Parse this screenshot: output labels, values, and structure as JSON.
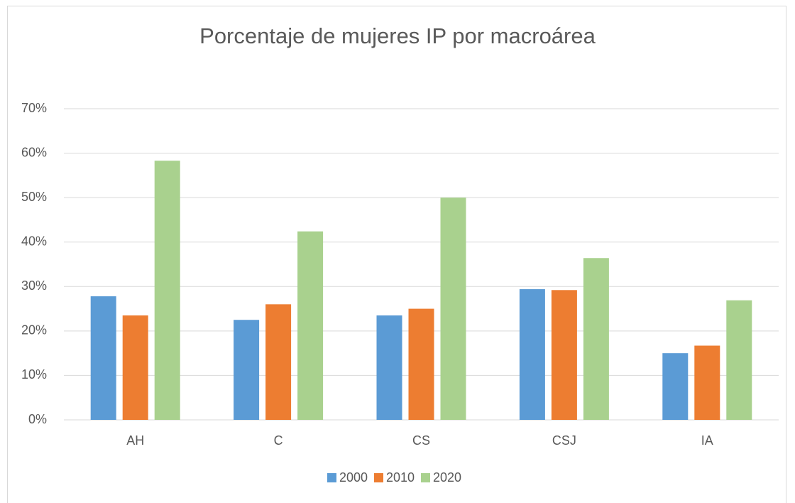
{
  "chart_data": {
    "type": "bar",
    "title": "Porcentaje de mujeres IP por macroárea",
    "categories": [
      "AH",
      "C",
      "CS",
      "CSJ",
      "IA"
    ],
    "series": [
      {
        "name": "2000",
        "color": "#5b9bd5",
        "values": [
          27.8,
          22.5,
          23.5,
          29.4,
          15
        ]
      },
      {
        "name": "2010",
        "color": "#ed7d31",
        "values": [
          23.5,
          26,
          25,
          29.2,
          16.7
        ]
      },
      {
        "name": "2020",
        "color": "#a9d18e",
        "values": [
          58.3,
          42.4,
          50,
          36.4,
          26.9
        ]
      }
    ],
    "ylim": [
      0,
      70
    ],
    "yticks": [
      {
        "value": 0,
        "label": "0%"
      },
      {
        "value": 10,
        "label": "10%"
      },
      {
        "value": 20,
        "label": "20%"
      },
      {
        "value": 30,
        "label": "30%"
      },
      {
        "value": 40,
        "label": "40%"
      },
      {
        "value": 50,
        "label": "50%"
      },
      {
        "value": 60,
        "label": "60%"
      },
      {
        "value": 70,
        "label": "70%"
      }
    ],
    "grid": true,
    "legend": "bottom"
  }
}
